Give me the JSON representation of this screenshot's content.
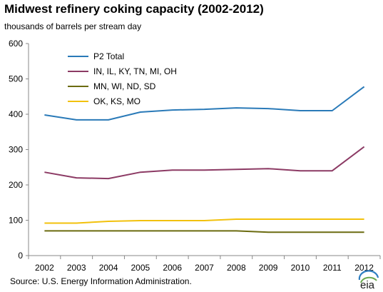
{
  "header": {
    "title": "Midwest refinery coking capacity (2002-2012)",
    "subtitle": "thousands of barrels per stream  day"
  },
  "footer": {
    "source": "Source:  U.S. Energy Information Administration.",
    "logo_text": "eia"
  },
  "colors": {
    "axis": "#888888",
    "text": "#000000"
  },
  "chart_data": {
    "type": "line",
    "title": "Midwest refinery coking capacity (2002-2012)",
    "ylabel": "thousands of barrels per stream  day",
    "xlabel": "",
    "categories": [
      "2002",
      "2003",
      "2004",
      "2005",
      "2006",
      "2007",
      "2008",
      "2009",
      "2010",
      "2011",
      "2012"
    ],
    "ylim": [
      0,
      600
    ],
    "yticks": [
      0,
      100,
      200,
      300,
      400,
      500,
      600
    ],
    "grid": false,
    "legend_position": "top-left",
    "series": [
      {
        "name": "P2 Total",
        "color": "#2a7ab8",
        "values": [
          398,
          384,
          384,
          406,
          412,
          414,
          418,
          416,
          410,
          410,
          478
        ]
      },
      {
        "name": "IN, IL, KY, TN,  MI, OH",
        "color": "#8c3a64",
        "values": [
          236,
          220,
          218,
          236,
          242,
          242,
          244,
          246,
          240,
          240,
          308
        ]
      },
      {
        "name": "MN, WI, ND, SD",
        "color": "#6b6b10",
        "values": [
          70,
          70,
          70,
          70,
          70,
          70,
          70,
          66,
          66,
          66,
          66
        ]
      },
      {
        "name": "OK, KS, MO",
        "color": "#f2c10c",
        "values": [
          92,
          92,
          97,
          99,
          99,
          99,
          103,
          103,
          103,
          103,
          103
        ]
      }
    ]
  }
}
